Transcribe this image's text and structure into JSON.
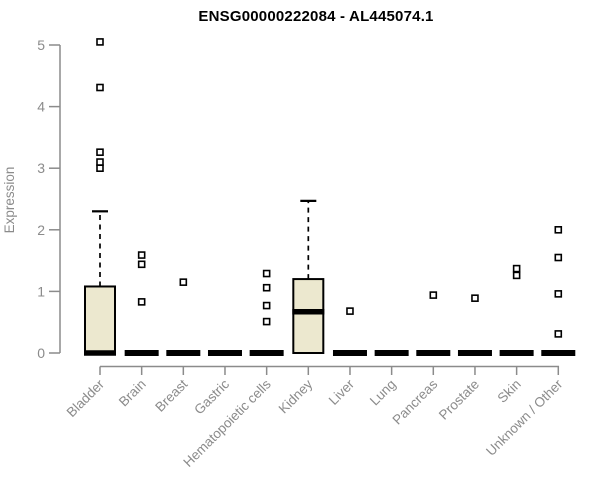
{
  "chart_data": {
    "type": "boxplot",
    "title": "ENSG00000222084 - AL445074.1",
    "ylabel": "Expression",
    "ylim": [
      0,
      5.2
    ],
    "yticks": [
      0,
      1,
      2,
      3,
      4,
      5
    ],
    "grid": false,
    "legend": "none",
    "categories": [
      "Bladder",
      "Brain",
      "Breast",
      "Gastric",
      "Hematopoietic cells",
      "Kidney",
      "Liver",
      "Lung",
      "Pancreas",
      "Prostate",
      "Skin",
      "Unknown / Other"
    ],
    "boxes": [
      {
        "category": "Bladder",
        "q1": 0,
        "median": 0,
        "q3": 1.08,
        "whisker_low": 0,
        "whisker_high": 2.3,
        "outliers": [
          3.0,
          3.1,
          3.26,
          4.31,
          5.05
        ]
      },
      {
        "category": "Brain",
        "q1": 0,
        "median": 0,
        "q3": 0,
        "whisker_low": 0,
        "whisker_high": 0,
        "outliers": [
          0.83,
          1.44,
          1.59
        ]
      },
      {
        "category": "Breast",
        "q1": 0,
        "median": 0,
        "q3": 0,
        "whisker_low": 0,
        "whisker_high": 0,
        "outliers": [
          1.15
        ]
      },
      {
        "category": "Gastric",
        "q1": 0,
        "median": 0,
        "q3": 0,
        "whisker_low": 0,
        "whisker_high": 0,
        "outliers": []
      },
      {
        "category": "Hematopoietic cells",
        "q1": 0,
        "median": 0,
        "q3": 0,
        "whisker_low": 0,
        "whisker_high": 0,
        "outliers": [
          0.51,
          0.77,
          1.06,
          1.29
        ]
      },
      {
        "category": "Kidney",
        "q1": 0,
        "median": 0.67,
        "q3": 1.2,
        "whisker_low": 0,
        "whisker_high": 2.47,
        "outliers": []
      },
      {
        "category": "Liver",
        "q1": 0,
        "median": 0,
        "q3": 0,
        "whisker_low": 0,
        "whisker_high": 0,
        "outliers": [
          0.68
        ]
      },
      {
        "category": "Lung",
        "q1": 0,
        "median": 0,
        "q3": 0,
        "whisker_low": 0,
        "whisker_high": 0,
        "outliers": []
      },
      {
        "category": "Pancreas",
        "q1": 0,
        "median": 0,
        "q3": 0,
        "whisker_low": 0,
        "whisker_high": 0,
        "outliers": [
          0.94
        ]
      },
      {
        "category": "Prostate",
        "q1": 0,
        "median": 0,
        "q3": 0,
        "whisker_low": 0,
        "whisker_high": 0,
        "outliers": [
          0.89
        ]
      },
      {
        "category": "Skin",
        "q1": 0,
        "median": 0,
        "q3": 0,
        "whisker_low": 0,
        "whisker_high": 0,
        "outliers": [
          1.26,
          1.37
        ]
      },
      {
        "category": "Unknown / Other",
        "q1": 0,
        "median": 0,
        "q3": 0,
        "whisker_low": 0,
        "whisker_high": 0,
        "outliers": [
          0.31,
          0.96,
          1.55,
          2.0
        ]
      }
    ],
    "colors": {
      "box_fill": "#ece8cf",
      "box_border": "#000000",
      "median": "#000000",
      "whisker": "#000000",
      "outlier_fill": "#ffffff",
      "outlier_border": "#000000",
      "axis": "#8b8b8b",
      "title": "#000000"
    }
  }
}
